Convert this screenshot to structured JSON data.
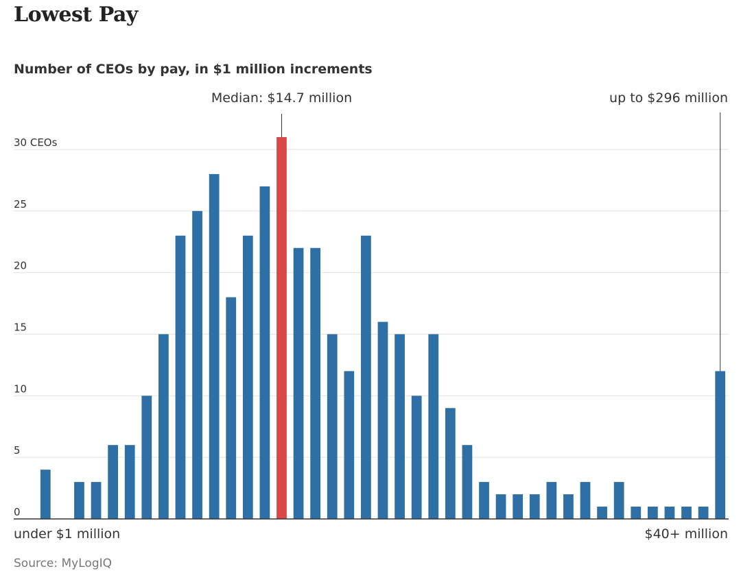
{
  "chart_data": {
    "type": "bar",
    "title": "Lowest Pay",
    "subtitle": "Number of CEOs by pay, in $1 million increments",
    "source": "Source: MyLogIQ",
    "ylabel_suffix": " CEOs",
    "ylim": [
      0,
      31
    ],
    "yticks": [
      0,
      5,
      10,
      15,
      20,
      25,
      30
    ],
    "ytick_labels": [
      "0",
      "5",
      "10",
      "15",
      "20",
      "25",
      "30 CEOs"
    ],
    "values": [
      4,
      0,
      3,
      3,
      6,
      6,
      10,
      15,
      23,
      25,
      28,
      18,
      23,
      27,
      31,
      22,
      22,
      15,
      12,
      23,
      16,
      15,
      10,
      15,
      9,
      6,
      3,
      2,
      2,
      2,
      3,
      2,
      3,
      1,
      3,
      1,
      1,
      1,
      1,
      1,
      12
    ],
    "highlight_index": 14,
    "first_label": "under $1 million",
    "last_label": "$40+ million",
    "annotations": {
      "median": "Median: $14.7 million",
      "max": "up to $296 million"
    },
    "colors": {
      "bar": "#2e6fa5",
      "highlight": "#d94848",
      "grid": "#e2e2e2",
      "axis": "#333333"
    }
  }
}
